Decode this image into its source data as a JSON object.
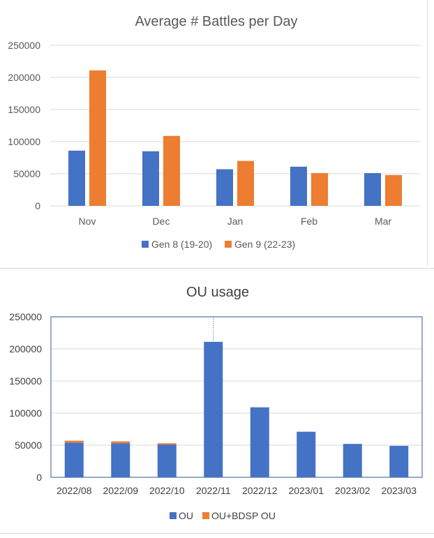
{
  "chart_data": [
    {
      "type": "bar",
      "title": "Average # Battles per Day",
      "categories": [
        "Nov",
        "Dec",
        "Jan",
        "Feb",
        "Mar"
      ],
      "series": [
        {
          "name": "Gen 8 (19-20)",
          "color": "#4472C4",
          "values": [
            86000,
            85000,
            57000,
            61000,
            51000
          ]
        },
        {
          "name": "Gen 9 (22-23)",
          "color": "#ED7D31",
          "values": [
            211000,
            109000,
            70000,
            51000,
            48000
          ]
        }
      ],
      "ylim": [
        0,
        250000
      ],
      "yticks": [
        "0",
        "50000",
        "100000",
        "150000",
        "200000",
        "250000"
      ],
      "grid": true,
      "legend": "bottom"
    },
    {
      "type": "bar",
      "stacked": true,
      "title": "OU usage",
      "categories": [
        "2022/08",
        "2022/09",
        "2022/10",
        "2022/11",
        "2022/12",
        "2023/01",
        "2023/02",
        "2023/03"
      ],
      "series": [
        {
          "name": "OU",
          "color": "#4472C4",
          "values": [
            54000,
            53000,
            51000,
            211000,
            109000,
            71000,
            52000,
            49000
          ]
        },
        {
          "name": "OU+BDSP OU",
          "color": "#ED7D31",
          "values": [
            3000,
            3000,
            2000,
            0,
            0,
            0,
            0,
            0
          ]
        }
      ],
      "ylim": [
        0,
        250000
      ],
      "yticks": [
        "0",
        "50000",
        "100000",
        "150000",
        "200000",
        "250000"
      ],
      "grid": true,
      "legend": "bottom"
    }
  ]
}
